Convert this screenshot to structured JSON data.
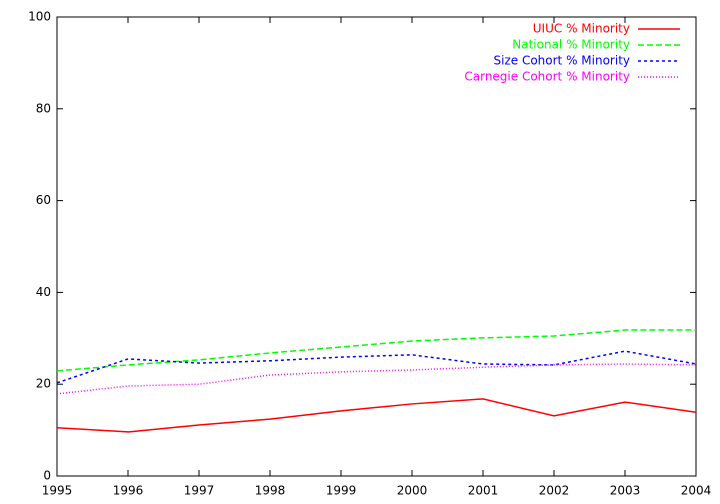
{
  "chart_data": {
    "type": "line",
    "x": [
      1995,
      1996,
      1997,
      1998,
      1999,
      2000,
      2001,
      2002,
      2003,
      2004
    ],
    "series": [
      {
        "name": "UIUC % Minority",
        "color": "#ff0000",
        "values": [
          10.5,
          9.6,
          11.1,
          12.4,
          14.2,
          15.7,
          16.8,
          13.1,
          16.1,
          13.9
        ]
      },
      {
        "name": "National % Minority",
        "color": "#00ff00",
        "dash": "6,3",
        "values": [
          22.9,
          24.2,
          25.3,
          26.8,
          28.1,
          29.4,
          30.1,
          30.5,
          31.8,
          31.8
        ]
      },
      {
        "name": "Size Cohort % Minority",
        "color": "#0000ff",
        "dash": "3,3",
        "values": [
          20.3,
          25.5,
          24.6,
          25.1,
          25.9,
          26.4,
          24.4,
          24.2,
          27.2,
          24.4
        ]
      },
      {
        "name": "Carnegie Cohort % Minority",
        "color": "#ff00ff",
        "dash": "1,2",
        "values": [
          17.9,
          19.6,
          20.0,
          22.0,
          22.7,
          23.1,
          23.7,
          24.2,
          24.4,
          24.2
        ]
      }
    ],
    "xlim": [
      1995,
      2004
    ],
    "xticks": [
      1995,
      1996,
      1997,
      1998,
      1999,
      2000,
      2001,
      2002,
      2003,
      2004
    ],
    "ylim": [
      0,
      100
    ],
    "yticks": [
      0,
      20,
      40,
      60,
      80,
      100
    ],
    "legend": "top-right"
  }
}
